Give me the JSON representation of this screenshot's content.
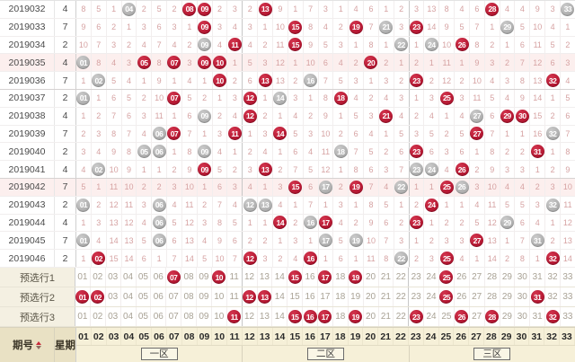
{
  "table": {
    "issue_label": "期号",
    "week_label": "星期",
    "zones": [
      {
        "label": "一区",
        "cols": [
          "01",
          "02",
          "03",
          "04",
          "05",
          "06",
          "07",
          "08",
          "09",
          "10",
          "11"
        ]
      },
      {
        "label": "二区",
        "cols": [
          "12",
          "13",
          "14",
          "15",
          "16",
          "17",
          "18",
          "19",
          "20",
          "21",
          "22"
        ]
      },
      {
        "label": "三区",
        "cols": [
          "23",
          "24",
          "25",
          "26",
          "27",
          "28",
          "29",
          "30",
          "31",
          "32",
          "33"
        ]
      }
    ],
    "cell_legend": {
      "r": "red-ball (drawn number)",
      "g": "gray-ball (drawn number)",
      "plain": "miss count"
    },
    "rows": [
      {
        "issue": "2019032",
        "week": "4",
        "highlight": false,
        "cells": [
          "8",
          "5",
          "1",
          "g04",
          "2",
          "5",
          "2",
          "r08",
          "r09",
          "2",
          "3",
          "2",
          "r13",
          "9",
          "1",
          "7",
          "3",
          "1",
          "4",
          "6",
          "1",
          "2",
          "3",
          "13",
          "8",
          "4",
          "6",
          "r28",
          "4",
          "4",
          "9",
          "3",
          "g33"
        ]
      },
      {
        "issue": "2019033",
        "week": "7",
        "highlight": false,
        "cells": [
          "9",
          "6",
          "2",
          "1",
          "3",
          "6",
          "3",
          "1",
          "r09",
          "3",
          "4",
          "3",
          "1",
          "10",
          "r15",
          "8",
          "4",
          "2",
          "r19",
          "7",
          "g21",
          "3",
          "r23",
          "14",
          "9",
          "5",
          "7",
          "1",
          "g29",
          "5",
          "10",
          "4",
          "1"
        ]
      },
      {
        "issue": "2019034",
        "week": "2",
        "highlight": false,
        "cells": [
          "10",
          "7",
          "3",
          "2",
          "4",
          "7",
          "4",
          "2",
          "g09",
          "4",
          "r11",
          "4",
          "2",
          "11",
          "r15",
          "9",
          "5",
          "3",
          "1",
          "8",
          "1",
          "g22",
          "1",
          "g24",
          "10",
          "r26",
          "8",
          "2",
          "1",
          "6",
          "11",
          "5",
          "2"
        ]
      },
      {
        "issue": "2019035",
        "week": "4",
        "highlight": true,
        "cells": [
          "g01",
          "8",
          "4",
          "3",
          "r05",
          "8",
          "r07",
          "3",
          "r09",
          "r10",
          "1",
          "5",
          "3",
          "12",
          "1",
          "10",
          "6",
          "4",
          "2",
          "r20",
          "2",
          "1",
          "2",
          "1",
          "11",
          "1",
          "9",
          "3",
          "2",
          "7",
          "12",
          "6",
          "3"
        ]
      },
      {
        "issue": "2019036",
        "week": "7",
        "highlight": false,
        "cells": [
          "1",
          "g02",
          "5",
          "4",
          "1",
          "9",
          "1",
          "4",
          "1",
          "r10",
          "2",
          "6",
          "r13",
          "13",
          "2",
          "g16",
          "7",
          "5",
          "3",
          "1",
          "3",
          "2",
          "r23",
          "2",
          "12",
          "2",
          "10",
          "4",
          "3",
          "8",
          "13",
          "r32",
          "4"
        ]
      },
      {
        "issue": "2019037",
        "week": "2",
        "highlight": false,
        "cells": [
          "g01",
          "1",
          "6",
          "5",
          "2",
          "10",
          "r07",
          "5",
          "2",
          "1",
          "3",
          "r12",
          "1",
          "g14",
          "3",
          "1",
          "8",
          "r18",
          "4",
          "2",
          "4",
          "3",
          "1",
          "3",
          "r25",
          "3",
          "11",
          "5",
          "4",
          "9",
          "14",
          "1",
          "5"
        ]
      },
      {
        "issue": "2019038",
        "week": "4",
        "highlight": false,
        "cells": [
          "1",
          "2",
          "7",
          "6",
          "3",
          "11",
          "1",
          "6",
          "g09",
          "2",
          "4",
          "r12",
          "2",
          "1",
          "4",
          "2",
          "9",
          "1",
          "5",
          "3",
          "r21",
          "4",
          "2",
          "4",
          "1",
          "4",
          "g27",
          "6",
          "r29",
          "r30",
          "15",
          "2",
          "6"
        ]
      },
      {
        "issue": "2019039",
        "week": "7",
        "highlight": false,
        "cells": [
          "2",
          "3",
          "8",
          "7",
          "4",
          "g06",
          "r07",
          "7",
          "1",
          "3",
          "r11",
          "1",
          "3",
          "r14",
          "5",
          "3",
          "10",
          "2",
          "6",
          "4",
          "1",
          "5",
          "3",
          "5",
          "2",
          "5",
          "r27",
          "7",
          "1",
          "1",
          "16",
          "g32",
          "7"
        ]
      },
      {
        "issue": "2019040",
        "week": "2",
        "highlight": false,
        "cells": [
          "3",
          "4",
          "9",
          "8",
          "g05",
          "g06",
          "1",
          "8",
          "g09",
          "4",
          "1",
          "2",
          "4",
          "1",
          "6",
          "4",
          "11",
          "g18",
          "7",
          "5",
          "2",
          "6",
          "r23",
          "6",
          "3",
          "6",
          "1",
          "8",
          "2",
          "2",
          "r31",
          "1",
          "8"
        ]
      },
      {
        "issue": "2019041",
        "week": "4",
        "highlight": false,
        "cells": [
          "4",
          "g02",
          "10",
          "9",
          "1",
          "1",
          "2",
          "9",
          "r09",
          "5",
          "2",
          "3",
          "r13",
          "2",
          "7",
          "5",
          "12",
          "1",
          "8",
          "6",
          "3",
          "7",
          "g23",
          "g24",
          "4",
          "r26",
          "2",
          "9",
          "3",
          "3",
          "1",
          "2",
          "9"
        ]
      },
      {
        "issue": "2019042",
        "week": "7",
        "highlight": true,
        "cells": [
          "5",
          "1",
          "11",
          "10",
          "2",
          "2",
          "3",
          "10",
          "1",
          "6",
          "3",
          "4",
          "1",
          "3",
          "r15",
          "6",
          "g17",
          "2",
          "r19",
          "7",
          "4",
          "g22",
          "1",
          "1",
          "r25",
          "g26",
          "3",
          "10",
          "4",
          "4",
          "2",
          "3",
          "10"
        ]
      },
      {
        "issue": "2019043",
        "week": "2",
        "highlight": false,
        "cells": [
          "g01",
          "2",
          "12",
          "11",
          "3",
          "g06",
          "4",
          "11",
          "2",
          "7",
          "4",
          "g12",
          "g13",
          "4",
          "1",
          "7",
          "1",
          "3",
          "1",
          "8",
          "5",
          "1",
          "2",
          "r24",
          "1",
          "1",
          "4",
          "11",
          "5",
          "5",
          "3",
          "g32",
          "11"
        ]
      },
      {
        "issue": "2019044",
        "week": "4",
        "highlight": false,
        "cells": [
          "1",
          "3",
          "13",
          "12",
          "4",
          "g06",
          "5",
          "12",
          "3",
          "8",
          "5",
          "1",
          "1",
          "r14",
          "2",
          "g16",
          "r17",
          "4",
          "2",
          "9",
          "6",
          "2",
          "r23",
          "1",
          "2",
          "2",
          "5",
          "12",
          "g29",
          "6",
          "4",
          "1",
          "12"
        ]
      },
      {
        "issue": "2019045",
        "week": "7",
        "highlight": false,
        "cells": [
          "g01",
          "4",
          "14",
          "13",
          "5",
          "g06",
          "6",
          "13",
          "4",
          "9",
          "6",
          "2",
          "2",
          "1",
          "3",
          "1",
          "g17",
          "5",
          "g19",
          "10",
          "7",
          "3",
          "1",
          "2",
          "3",
          "3",
          "r27",
          "13",
          "1",
          "7",
          "g31",
          "2",
          "13"
        ]
      },
      {
        "issue": "2019046",
        "week": "2",
        "highlight": false,
        "cells": [
          "1",
          "r02",
          "15",
          "14",
          "6",
          "1",
          "7",
          "14",
          "5",
          "10",
          "7",
          "r12",
          "3",
          "2",
          "4",
          "r16",
          "1",
          "6",
          "1",
          "11",
          "8",
          "g22",
          "2",
          "3",
          "r25",
          "4",
          "1",
          "14",
          "2",
          "8",
          "1",
          "r32",
          "14"
        ]
      }
    ],
    "presel_rows": [
      {
        "label": "预选行1",
        "red_numbers": [
          7,
          10,
          15,
          17,
          19,
          25
        ]
      },
      {
        "label": "预选行2",
        "red_numbers": [
          1,
          2,
          12,
          13,
          25,
          31
        ]
      },
      {
        "label": "预选行3",
        "red_numbers": [
          11,
          15,
          16,
          17,
          19,
          23,
          26,
          28,
          32
        ]
      }
    ]
  },
  "colors": {
    "red_ball": "#b70d2b",
    "gray_ball": "#b0b0b0",
    "miss_text": "#d6a2a2",
    "highlight_row_bg": "#fcefee",
    "footer_header_bg": "#e9e1c4",
    "footer_numbers_bg": "#f6f0d8",
    "presel_label_bg": "#f4f0e2"
  }
}
